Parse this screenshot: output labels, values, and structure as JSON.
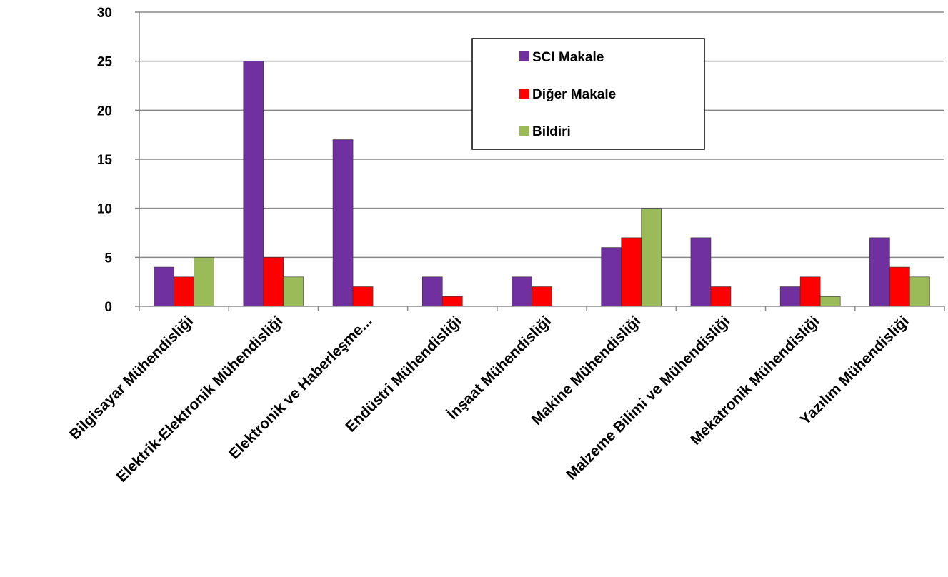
{
  "chart_data": {
    "type": "bar",
    "title": "",
    "xlabel": "",
    "ylabel": "",
    "categories": [
      "Bilgisayar Mühendisliği",
      "Elektrik-Elektronik Mühendisliği",
      "Elektronik ve Haberleşme...",
      "Endüstri Mühendisliği",
      "İnşaat Mühendisliği",
      "Makine Mühendisliği",
      "Malzeme Bilimi ve Mühendisliği",
      "Mekatronik Mühendisliği",
      "Yazılım Mühendisliği"
    ],
    "series": [
      {
        "name": "SCI Makale",
        "color": "#7030A0",
        "values": [
          4,
          25,
          17,
          3,
          3,
          6,
          7,
          2,
          7
        ]
      },
      {
        "name": "Diğer Makale",
        "color": "#FF0000",
        "values": [
          3,
          5,
          2,
          1,
          2,
          7,
          2,
          3,
          4
        ]
      },
      {
        "name": "Bildiri",
        "color": "#9BBB59",
        "values": [
          5,
          3,
          0,
          0,
          0,
          10,
          0,
          1,
          3
        ]
      }
    ],
    "ylim": [
      0,
      30
    ],
    "yticks": [
      0,
      5,
      10,
      15,
      20,
      25,
      30
    ],
    "grid": true,
    "legend": "top-center"
  }
}
